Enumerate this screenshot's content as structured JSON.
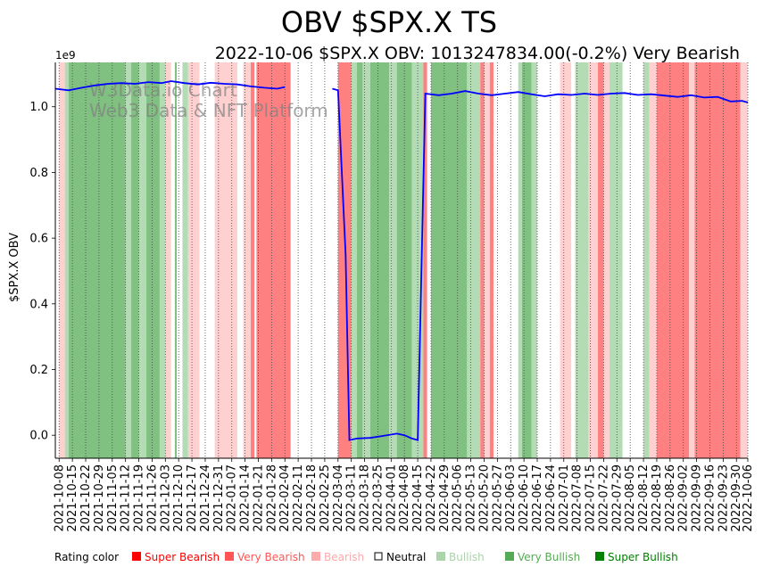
{
  "chart_data": {
    "type": "line",
    "title": "OBV $SPX.X TS",
    "subtitle": "2022-10-06 $SPX.X OBV: 1013247834.00(-0.2%) Very Bearish",
    "ylabel": "$SPX.X OBV",
    "xlabel": "",
    "y_offset_label": "1e9",
    "ylim": [
      -0.07,
      1.135
    ],
    "y_ticks": [
      0.0,
      0.2,
      0.4,
      0.6,
      0.8,
      1.0
    ],
    "y_tick_labels": [
      "0.0",
      "0.2",
      "0.4",
      "0.6",
      "0.8",
      "1.0"
    ],
    "xlim": [
      "2021-10-06",
      "2022-10-06"
    ],
    "x_tick_labels": [
      "2021-10-08",
      "2021-10-15",
      "2021-10-22",
      "2021-10-29",
      "2021-11-05",
      "2021-11-12",
      "2021-11-19",
      "2021-11-26",
      "2021-12-03",
      "2021-12-10",
      "2021-12-17",
      "2021-12-24",
      "2021-12-31",
      "2022-01-07",
      "2022-01-14",
      "2022-01-21",
      "2022-01-28",
      "2022-02-04",
      "2022-02-11",
      "2022-02-18",
      "2022-02-25",
      "2022-03-04",
      "2022-03-11",
      "2022-03-18",
      "2022-03-25",
      "2022-04-01",
      "2022-04-08",
      "2022-04-15",
      "2022-04-22",
      "2022-04-29",
      "2022-05-06",
      "2022-05-13",
      "2022-05-20",
      "2022-05-27",
      "2022-06-03",
      "2022-06-10",
      "2022-06-17",
      "2022-06-24",
      "2022-07-01",
      "2022-07-08",
      "2022-07-15",
      "2022-07-22",
      "2022-07-29",
      "2022-08-05",
      "2022-08-12",
      "2022-08-19",
      "2022-08-26",
      "2022-09-02",
      "2022-09-09",
      "2022-09-16",
      "2022-09-23",
      "2022-09-30",
      "2022-10-06"
    ],
    "grid": "vertical-dotted",
    "series": [
      {
        "color": "#0000ff",
        "segments": [
          [
            [
              "2021-10-06",
              1.055
            ],
            [
              "2021-10-13",
              1.05
            ],
            [
              "2021-10-20",
              1.058
            ],
            [
              "2021-10-27",
              1.065
            ],
            [
              "2021-11-03",
              1.07
            ],
            [
              "2021-11-10",
              1.072
            ],
            [
              "2021-11-17",
              1.07
            ],
            [
              "2021-11-24",
              1.075
            ],
            [
              "2021-12-01",
              1.072
            ],
            [
              "2021-12-06",
              1.078
            ],
            [
              "2021-12-13",
              1.072
            ],
            [
              "2021-12-20",
              1.068
            ],
            [
              "2021-12-27",
              1.073
            ],
            [
              "2022-01-03",
              1.07
            ],
            [
              "2022-01-10",
              1.068
            ],
            [
              "2022-01-17",
              1.062
            ],
            [
              "2022-01-24",
              1.058
            ],
            [
              "2022-01-31",
              1.055
            ],
            [
              "2022-02-04",
              1.06
            ]
          ],
          [
            [
              "2022-03-01",
              1.055
            ],
            [
              "2022-03-04",
              1.05
            ],
            [
              "2022-03-08",
              0.55
            ],
            [
              "2022-03-10",
              -0.015
            ],
            [
              "2022-03-14",
              -0.01
            ],
            [
              "2022-03-21",
              -0.008
            ],
            [
              "2022-03-28",
              -0.002
            ],
            [
              "2022-04-04",
              0.005
            ],
            [
              "2022-04-08",
              0.0
            ],
            [
              "2022-04-12",
              -0.01
            ],
            [
              "2022-04-15",
              -0.015
            ],
            [
              "2022-04-19",
              1.04
            ],
            [
              "2022-04-26",
              1.035
            ],
            [
              "2022-05-03",
              1.04
            ],
            [
              "2022-05-10",
              1.048
            ],
            [
              "2022-05-17",
              1.04
            ],
            [
              "2022-05-24",
              1.035
            ],
            [
              "2022-05-31",
              1.04
            ],
            [
              "2022-06-07",
              1.045
            ],
            [
              "2022-06-14",
              1.038
            ],
            [
              "2022-06-21",
              1.032
            ],
            [
              "2022-06-28",
              1.038
            ],
            [
              "2022-07-05",
              1.036
            ],
            [
              "2022-07-12",
              1.04
            ],
            [
              "2022-07-19",
              1.036
            ],
            [
              "2022-07-26",
              1.04
            ],
            [
              "2022-08-02",
              1.042
            ],
            [
              "2022-08-09",
              1.036
            ],
            [
              "2022-08-16",
              1.038
            ],
            [
              "2022-08-23",
              1.034
            ],
            [
              "2022-08-30",
              1.03
            ],
            [
              "2022-09-06",
              1.035
            ],
            [
              "2022-09-13",
              1.028
            ],
            [
              "2022-09-20",
              1.03
            ],
            [
              "2022-09-27",
              1.016
            ],
            [
              "2022-10-03",
              1.018
            ],
            [
              "2022-10-06",
              1.013
            ]
          ]
        ]
      }
    ],
    "rating_bands": [
      {
        "start": "2021-10-06",
        "end": "2021-10-08",
        "rating": "Neutral"
      },
      {
        "start": "2021-10-08",
        "end": "2021-10-11",
        "rating": "Bearish"
      },
      {
        "start": "2021-10-11",
        "end": "2021-10-13",
        "rating": "Bullish"
      },
      {
        "start": "2021-10-13",
        "end": "2021-11-12",
        "rating": "Very Bullish"
      },
      {
        "start": "2021-11-12",
        "end": "2021-11-15",
        "rating": "Bullish"
      },
      {
        "start": "2021-11-15",
        "end": "2021-11-19",
        "rating": "Very Bullish"
      },
      {
        "start": "2021-11-19",
        "end": "2021-11-23",
        "rating": "Bullish"
      },
      {
        "start": "2021-11-23",
        "end": "2021-11-30",
        "rating": "Very Bullish"
      },
      {
        "start": "2021-11-30",
        "end": "2021-12-03",
        "rating": "Bullish"
      },
      {
        "start": "2021-12-03",
        "end": "2021-12-06",
        "rating": "Bearish"
      },
      {
        "start": "2021-12-06",
        "end": "2021-12-08",
        "rating": "Neutral"
      },
      {
        "start": "2021-12-08",
        "end": "2021-12-09",
        "rating": "Very Bullish"
      },
      {
        "start": "2021-12-09",
        "end": "2021-12-12",
        "rating": "Neutral"
      },
      {
        "start": "2021-12-12",
        "end": "2021-12-15",
        "rating": "Bullish"
      },
      {
        "start": "2021-12-15",
        "end": "2021-12-21",
        "rating": "Bearish"
      },
      {
        "start": "2021-12-21",
        "end": "2021-12-29",
        "rating": "Neutral"
      },
      {
        "start": "2021-12-29",
        "end": "2022-01-10",
        "rating": "Bearish"
      },
      {
        "start": "2022-01-10",
        "end": "2022-01-13",
        "rating": "Neutral"
      },
      {
        "start": "2022-01-13",
        "end": "2022-01-17",
        "rating": "Bearish"
      },
      {
        "start": "2022-01-17",
        "end": "2022-01-19",
        "rating": "Very Bearish"
      },
      {
        "start": "2022-01-19",
        "end": "2022-01-20",
        "rating": "Neutral"
      },
      {
        "start": "2022-01-20",
        "end": "2022-02-07",
        "rating": "Very Bearish"
      },
      {
        "start": "2022-03-04",
        "end": "2022-03-11",
        "rating": "Very Bearish"
      },
      {
        "start": "2022-03-11",
        "end": "2022-03-14",
        "rating": "Bullish"
      },
      {
        "start": "2022-03-14",
        "end": "2022-03-17",
        "rating": "Very Bullish"
      },
      {
        "start": "2022-03-17",
        "end": "2022-03-21",
        "rating": "Bullish"
      },
      {
        "start": "2022-03-21",
        "end": "2022-03-31",
        "rating": "Very Bullish"
      },
      {
        "start": "2022-03-31",
        "end": "2022-04-04",
        "rating": "Bullish"
      },
      {
        "start": "2022-04-04",
        "end": "2022-04-12",
        "rating": "Very Bullish"
      },
      {
        "start": "2022-04-12",
        "end": "2022-04-18",
        "rating": "Bullish"
      },
      {
        "start": "2022-04-18",
        "end": "2022-04-20",
        "rating": "Very Bearish"
      },
      {
        "start": "2022-04-20",
        "end": "2022-04-22",
        "rating": "Neutral"
      },
      {
        "start": "2022-04-22",
        "end": "2022-05-11",
        "rating": "Very Bullish"
      },
      {
        "start": "2022-05-11",
        "end": "2022-05-18",
        "rating": "Bullish"
      },
      {
        "start": "2022-05-18",
        "end": "2022-05-20",
        "rating": "Very Bearish"
      },
      {
        "start": "2022-05-20",
        "end": "2022-05-23",
        "rating": "Bearish"
      },
      {
        "start": "2022-05-23",
        "end": "2022-05-25",
        "rating": "Very Bearish"
      },
      {
        "start": "2022-05-25",
        "end": "2022-06-07",
        "rating": "Neutral"
      },
      {
        "start": "2022-06-07",
        "end": "2022-06-09",
        "rating": "Bullish"
      },
      {
        "start": "2022-06-09",
        "end": "2022-06-14",
        "rating": "Very Bullish"
      },
      {
        "start": "2022-06-14",
        "end": "2022-06-17",
        "rating": "Bullish"
      },
      {
        "start": "2022-06-17",
        "end": "2022-06-29",
        "rating": "Neutral"
      },
      {
        "start": "2022-06-29",
        "end": "2022-07-05",
        "rating": "Bearish"
      },
      {
        "start": "2022-07-05",
        "end": "2022-07-07",
        "rating": "Neutral"
      },
      {
        "start": "2022-07-07",
        "end": "2022-07-14",
        "rating": "Bullish"
      },
      {
        "start": "2022-07-14",
        "end": "2022-07-19",
        "rating": "Bearish"
      },
      {
        "start": "2022-07-19",
        "end": "2022-07-22",
        "rating": "Very Bearish"
      },
      {
        "start": "2022-07-22",
        "end": "2022-07-25",
        "rating": "Bearish"
      },
      {
        "start": "2022-07-25",
        "end": "2022-08-01",
        "rating": "Bullish"
      },
      {
        "start": "2022-08-01",
        "end": "2022-08-12",
        "rating": "Neutral"
      },
      {
        "start": "2022-08-12",
        "end": "2022-08-15",
        "rating": "Bullish"
      },
      {
        "start": "2022-08-15",
        "end": "2022-08-19",
        "rating": "Bearish"
      },
      {
        "start": "2022-08-19",
        "end": "2022-09-05",
        "rating": "Very Bearish"
      },
      {
        "start": "2022-09-05",
        "end": "2022-09-08",
        "rating": "Bearish"
      },
      {
        "start": "2022-09-08",
        "end": "2022-10-02",
        "rating": "Very Bearish"
      },
      {
        "start": "2022-10-02",
        "end": "2022-10-06",
        "rating": "Bearish"
      }
    ],
    "watermark": [
      "W3Data.io Chart",
      "Web3 Data & NFT Platform"
    ],
    "legend": {
      "placement": "bottom",
      "label": "Rating color",
      "items": [
        {
          "name": "Super Bearish",
          "color": "#ff0000"
        },
        {
          "name": "Very Bearish",
          "color": "#ff5555"
        },
        {
          "name": "Bearish",
          "color": "#ffaaaa"
        },
        {
          "name": "Neutral",
          "color": "#000000"
        },
        {
          "name": "Bullish",
          "color": "#aad4aa"
        },
        {
          "name": "Very Bullish",
          "color": "#55aa55"
        },
        {
          "name": "Super Bullish",
          "color": "#008000"
        }
      ]
    },
    "band_colors": {
      "Very Bearish": "#ff8080",
      "Bearish": "#ffd0d0",
      "Bullish": "#b4dcb4",
      "Very Bullish": "#80c080",
      "Neutral": "#ffffff"
    }
  }
}
